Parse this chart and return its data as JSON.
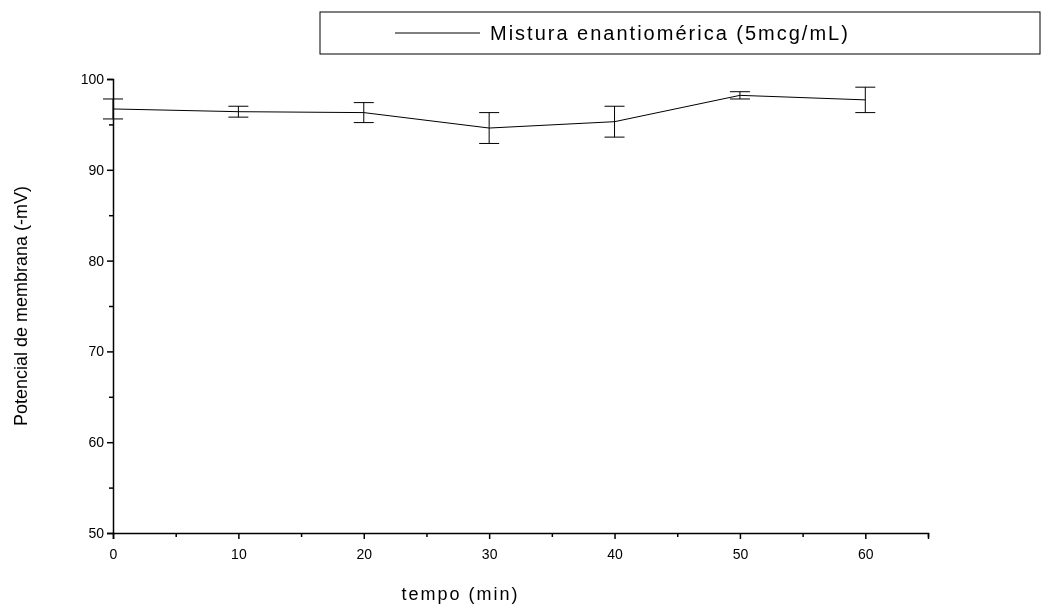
{
  "chart_data": {
    "type": "line",
    "xlabel": "tempo (min)",
    "ylabel": "Potencial de membrana (-mV)",
    "x": [
      0,
      10,
      20,
      30,
      40,
      50,
      60
    ],
    "series": [
      {
        "name": "Mistura enantiomérica (5mcg/mL)",
        "color": "#000000",
        "values": [
          96.7,
          96.4,
          96.3,
          94.6,
          95.3,
          98.2,
          97.7
        ],
        "errors": [
          1.1,
          0.6,
          1.1,
          1.7,
          1.7,
          0.4,
          1.4
        ]
      }
    ],
    "xlim": [
      0,
      65
    ],
    "xticks": [
      0,
      {
        "value": 5,
        "label": null
      },
      10,
      {
        "value": 15,
        "label": null
      },
      20,
      {
        "value": 25,
        "label": null
      },
      30,
      {
        "value": 35,
        "label": null
      },
      40,
      {
        "value": 45,
        "label": null
      },
      50,
      {
        "value": 55,
        "label": null
      },
      60,
      {
        "value": 65,
        "label": null
      }
    ],
    "ylim": [
      50,
      100
    ],
    "yticks": [
      50,
      {
        "value": 55,
        "label": null
      },
      60,
      {
        "value": 65,
        "label": null
      },
      70,
      {
        "value": 75,
        "label": null
      },
      80,
      {
        "value": 85,
        "label": null
      },
      90,
      {
        "value": 95,
        "label": null
      },
      100
    ],
    "grid": false,
    "legend": "top right",
    "marker": "none",
    "line_style": "solid"
  }
}
